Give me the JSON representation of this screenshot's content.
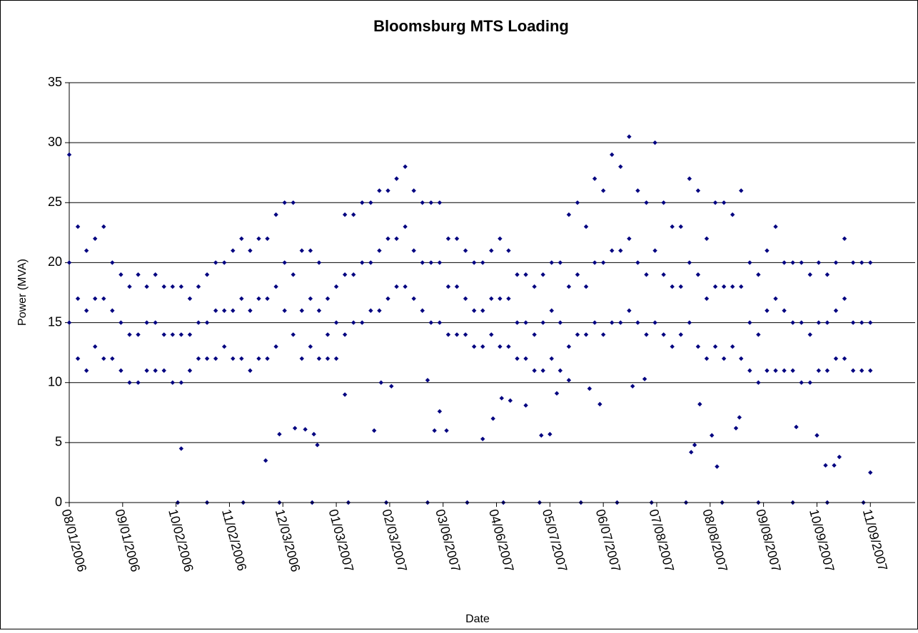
{
  "chart_data": {
    "type": "scatter",
    "title": "Bloomsburg MTS Loading",
    "x_label": "Date",
    "y_label": "Power (MVA)",
    "color": "#000080",
    "grid": true,
    "xlim": [
      "2006-08-01",
      "2007-12-05"
    ],
    "ylim": [
      0,
      35
    ],
    "yticks": [
      0,
      5,
      10,
      15,
      20,
      25,
      30,
      35
    ],
    "xticks": [
      {
        "value": "2006-08-01",
        "label": "08/01/2006"
      },
      {
        "value": "2006-09-01",
        "label": "09/01/2006"
      },
      {
        "value": "2006-10-02",
        "label": "10/02/2006"
      },
      {
        "value": "2006-11-02",
        "label": "11/02/2006"
      },
      {
        "value": "2006-12-03",
        "label": "12/03/2006"
      },
      {
        "value": "2007-01-03",
        "label": "01/03/2007"
      },
      {
        "value": "2007-02-03",
        "label": "02/03/2007"
      },
      {
        "value": "2007-03-06",
        "label": "03/06/2007"
      },
      {
        "value": "2007-04-06",
        "label": "04/06/2007"
      },
      {
        "value": "2007-05-07",
        "label": "05/07/2007"
      },
      {
        "value": "2007-06-07",
        "label": "06/07/2007"
      },
      {
        "value": "2007-07-08",
        "label": "07/08/2007"
      },
      {
        "value": "2007-08-08",
        "label": "08/08/2007"
      },
      {
        "value": "2007-09-08",
        "label": "09/08/2007"
      },
      {
        "value": "2007-10-09",
        "label": "10/09/2007"
      },
      {
        "value": "2007-11-09",
        "label": "11/09/2007"
      }
    ],
    "x": [
      "2006-08-01",
      "2006-08-01",
      "2006-08-01",
      "2006-08-06",
      "2006-08-06",
      "2006-08-06",
      "2006-08-11",
      "2006-08-11",
      "2006-08-11",
      "2006-08-16",
      "2006-08-16",
      "2006-08-16",
      "2006-08-21",
      "2006-08-21",
      "2006-08-21",
      "2006-08-26",
      "2006-08-26",
      "2006-08-26",
      "2006-08-31",
      "2006-08-31",
      "2006-08-31",
      "2006-09-05",
      "2006-09-05",
      "2006-09-05",
      "2006-09-10",
      "2006-09-10",
      "2006-09-10",
      "2006-09-15",
      "2006-09-15",
      "2006-09-15",
      "2006-09-20",
      "2006-09-20",
      "2006-09-20",
      "2006-09-25",
      "2006-09-25",
      "2006-09-25",
      "2006-09-30",
      "2006-09-30",
      "2006-09-30",
      "2006-10-05",
      "2006-10-05",
      "2006-10-05",
      "2006-10-10",
      "2006-10-10",
      "2006-10-10",
      "2006-10-15",
      "2006-10-15",
      "2006-10-15",
      "2006-10-20",
      "2006-10-20",
      "2006-10-20",
      "2006-10-25",
      "2006-10-25",
      "2006-10-25",
      "2006-10-30",
      "2006-10-30",
      "2006-10-30",
      "2006-11-04",
      "2006-11-04",
      "2006-11-04",
      "2006-11-09",
      "2006-11-09",
      "2006-11-09",
      "2006-11-14",
      "2006-11-14",
      "2006-11-14",
      "2006-11-19",
      "2006-11-19",
      "2006-11-19",
      "2006-11-24",
      "2006-11-24",
      "2006-11-24",
      "2006-11-29",
      "2006-11-29",
      "2006-11-29",
      "2006-12-04",
      "2006-12-04",
      "2006-12-04",
      "2006-12-09",
      "2006-12-09",
      "2006-12-09",
      "2006-12-14",
      "2006-12-14",
      "2006-12-14",
      "2006-12-19",
      "2006-12-19",
      "2006-12-19",
      "2006-12-24",
      "2006-12-24",
      "2006-12-24",
      "2006-12-29",
      "2006-12-29",
      "2006-12-29",
      "2007-01-03",
      "2007-01-03",
      "2007-01-03",
      "2007-01-08",
      "2007-01-08",
      "2007-01-08",
      "2007-01-13",
      "2007-01-13",
      "2007-01-13",
      "2007-01-18",
      "2007-01-18",
      "2007-01-18",
      "2007-01-23",
      "2007-01-23",
      "2007-01-23",
      "2007-01-28",
      "2007-01-28",
      "2007-01-28",
      "2007-02-02",
      "2007-02-02",
      "2007-02-02",
      "2007-02-07",
      "2007-02-07",
      "2007-02-07",
      "2007-02-12",
      "2007-02-12",
      "2007-02-12",
      "2007-02-17",
      "2007-02-17",
      "2007-02-17",
      "2007-02-22",
      "2007-02-22",
      "2007-02-22",
      "2007-02-27",
      "2007-02-27",
      "2007-02-27",
      "2007-03-04",
      "2007-03-04",
      "2007-03-04",
      "2007-03-09",
      "2007-03-09",
      "2007-03-09",
      "2007-03-14",
      "2007-03-14",
      "2007-03-14",
      "2007-03-19",
      "2007-03-19",
      "2007-03-19",
      "2007-03-24",
      "2007-03-24",
      "2007-03-24",
      "2007-03-29",
      "2007-03-29",
      "2007-03-29",
      "2007-04-03",
      "2007-04-03",
      "2007-04-03",
      "2007-04-08",
      "2007-04-08",
      "2007-04-08",
      "2007-04-13",
      "2007-04-13",
      "2007-04-13",
      "2007-04-18",
      "2007-04-18",
      "2007-04-18",
      "2007-04-23",
      "2007-04-23",
      "2007-04-23",
      "2007-04-28",
      "2007-04-28",
      "2007-04-28",
      "2007-05-03",
      "2007-05-03",
      "2007-05-03",
      "2007-05-08",
      "2007-05-08",
      "2007-05-08",
      "2007-05-13",
      "2007-05-13",
      "2007-05-13",
      "2007-05-18",
      "2007-05-18",
      "2007-05-18",
      "2007-05-23",
      "2007-05-23",
      "2007-05-23",
      "2007-05-28",
      "2007-05-28",
      "2007-05-28",
      "2007-06-02",
      "2007-06-02",
      "2007-06-02",
      "2007-06-07",
      "2007-06-07",
      "2007-06-07",
      "2007-06-12",
      "2007-06-12",
      "2007-06-12",
      "2007-06-17",
      "2007-06-17",
      "2007-06-17",
      "2007-06-22",
      "2007-06-22",
      "2007-06-22",
      "2007-06-27",
      "2007-06-27",
      "2007-06-27",
      "2007-07-02",
      "2007-07-02",
      "2007-07-02",
      "2007-07-07",
      "2007-07-07",
      "2007-07-07",
      "2007-07-12",
      "2007-07-12",
      "2007-07-12",
      "2007-07-17",
      "2007-07-17",
      "2007-07-17",
      "2007-07-22",
      "2007-07-22",
      "2007-07-22",
      "2007-07-27",
      "2007-07-27",
      "2007-07-27",
      "2007-08-01",
      "2007-08-01",
      "2007-08-01",
      "2007-08-06",
      "2007-08-06",
      "2007-08-06",
      "2007-08-11",
      "2007-08-11",
      "2007-08-11",
      "2007-08-16",
      "2007-08-16",
      "2007-08-16",
      "2007-08-21",
      "2007-08-21",
      "2007-08-21",
      "2007-08-26",
      "2007-08-26",
      "2007-08-26",
      "2007-08-31",
      "2007-08-31",
      "2007-08-31",
      "2007-09-05",
      "2007-09-05",
      "2007-09-05",
      "2007-09-10",
      "2007-09-10",
      "2007-09-10",
      "2007-09-15",
      "2007-09-15",
      "2007-09-15",
      "2007-09-20",
      "2007-09-20",
      "2007-09-20",
      "2007-09-25",
      "2007-09-25",
      "2007-09-25",
      "2007-09-30",
      "2007-09-30",
      "2007-09-30",
      "2007-10-05",
      "2007-10-05",
      "2007-10-05",
      "2007-10-10",
      "2007-10-10",
      "2007-10-10",
      "2007-10-15",
      "2007-10-15",
      "2007-10-15",
      "2007-10-20",
      "2007-10-20",
      "2007-10-20",
      "2007-10-25",
      "2007-10-25",
      "2007-10-25",
      "2007-10-30",
      "2007-10-30",
      "2007-10-30",
      "2007-11-04",
      "2007-11-04",
      "2007-11-04",
      "2007-11-09",
      "2007-11-09",
      "2007-11-09",
      "2006-10-05",
      "2006-11-23",
      "2006-12-01",
      "2006-12-10",
      "2006-12-16",
      "2006-12-21",
      "2006-12-23",
      "2007-01-08",
      "2007-01-25",
      "2007-01-29",
      "2007-02-04",
      "2007-02-25",
      "2007-03-01",
      "2007-03-04",
      "2007-03-08",
      "2007-03-29",
      "2007-04-04",
      "2007-04-09",
      "2007-04-14",
      "2007-04-23",
      "2007-05-02",
      "2007-05-07",
      "2007-05-11",
      "2007-05-18",
      "2007-05-30",
      "2007-06-05",
      "2007-06-24",
      "2007-07-01",
      "2007-07-28",
      "2007-07-30",
      "2007-08-02",
      "2007-08-09",
      "2007-08-12",
      "2007-08-23",
      "2007-08-25",
      "2007-09-27",
      "2007-10-09",
      "2007-10-14",
      "2007-10-19",
      "2007-10-22",
      "2007-11-09",
      "2006-10-03",
      "2006-10-20",
      "2006-11-10",
      "2006-12-01",
      "2006-12-20",
      "2007-01-10",
      "2007-02-01",
      "2007-02-25",
      "2007-03-20",
      "2007-04-10",
      "2007-05-01",
      "2007-05-25",
      "2007-06-15",
      "2007-07-05",
      "2007-07-25",
      "2007-08-15",
      "2007-09-05",
      "2007-09-25",
      "2007-10-15",
      "2007-11-05"
    ],
    "values": [
      29,
      20,
      15,
      23,
      17,
      12,
      21,
      16,
      11,
      22,
      17,
      13,
      23,
      17,
      12,
      20,
      16,
      12,
      19,
      15,
      11,
      18,
      14,
      10,
      19,
      14,
      10,
      18,
      15,
      11,
      19,
      15,
      11,
      18,
      14,
      11,
      18,
      14,
      10,
      18,
      14,
      10,
      17,
      14,
      11,
      18,
      15,
      12,
      19,
      15,
      12,
      20,
      16,
      12,
      20,
      16,
      13,
      21,
      16,
      12,
      22,
      17,
      12,
      21,
      16,
      11,
      22,
      17,
      12,
      22,
      17,
      12,
      24,
      18,
      13,
      25,
      20,
      16,
      25,
      19,
      14,
      21,
      16,
      12,
      21,
      17,
      13,
      20,
      16,
      12,
      17,
      14,
      12,
      18,
      15,
      12,
      24,
      19,
      14,
      24,
      19,
      15,
      25,
      20,
      15,
      25,
      20,
      16,
      26,
      21,
      16,
      26,
      22,
      17,
      27,
      22,
      18,
      28,
      23,
      18,
      26,
      21,
      17,
      25,
      20,
      16,
      25,
      20,
      15,
      25,
      20,
      15,
      22,
      18,
      14,
      22,
      18,
      14,
      21,
      17,
      14,
      20,
      16,
      13,
      20,
      16,
      13,
      21,
      17,
      14,
      22,
      17,
      13,
      21,
      17,
      13,
      19,
      15,
      12,
      19,
      15,
      12,
      18,
      14,
      11,
      19,
      15,
      11,
      20,
      16,
      12,
      20,
      15,
      11,
      24,
      18,
      13,
      25,
      19,
      14,
      23,
      18,
      14,
      27,
      20,
      15,
      26,
      20,
      14,
      29,
      21,
      15,
      28,
      21,
      15,
      30.5,
      22,
      16,
      26,
      20,
      15,
      25,
      19,
      14,
      30,
      21,
      15,
      25,
      19,
      14,
      23,
      18,
      13,
      23,
      18,
      14,
      27,
      20,
      15,
      26,
      19,
      13,
      22,
      17,
      12,
      25,
      18,
      13,
      25,
      18,
      12,
      24,
      18,
      13,
      26,
      18,
      12,
      20,
      15,
      11,
      19,
      14,
      10,
      21,
      16,
      11,
      23,
      17,
      11,
      20,
      16,
      11,
      20,
      15,
      11,
      20,
      15,
      10,
      19,
      14,
      10,
      20,
      15,
      11,
      19,
      15,
      11,
      20,
      16,
      12,
      22,
      17,
      12,
      20,
      15,
      11,
      20,
      15,
      11,
      20,
      15,
      11,
      4.5,
      3.5,
      5.7,
      6.2,
      6.1,
      5.7,
      4.8,
      9,
      6,
      10,
      9.7,
      10.2,
      6,
      7.6,
      6,
      5.3,
      7,
      8.7,
      8.5,
      8.1,
      5.6,
      5.7,
      9.1,
      10.2,
      9.5,
      8.2,
      9.7,
      10.3,
      4.2,
      4.8,
      8.2,
      5.6,
      3,
      6.2,
      7.1,
      6.3,
      5.6,
      3.1,
      3.1,
      3.8,
      2.5,
      0,
      0,
      0,
      0,
      0,
      0,
      0,
      0,
      0,
      0,
      0,
      0,
      0,
      0,
      0,
      0,
      0,
      0,
      0,
      0
    ]
  }
}
